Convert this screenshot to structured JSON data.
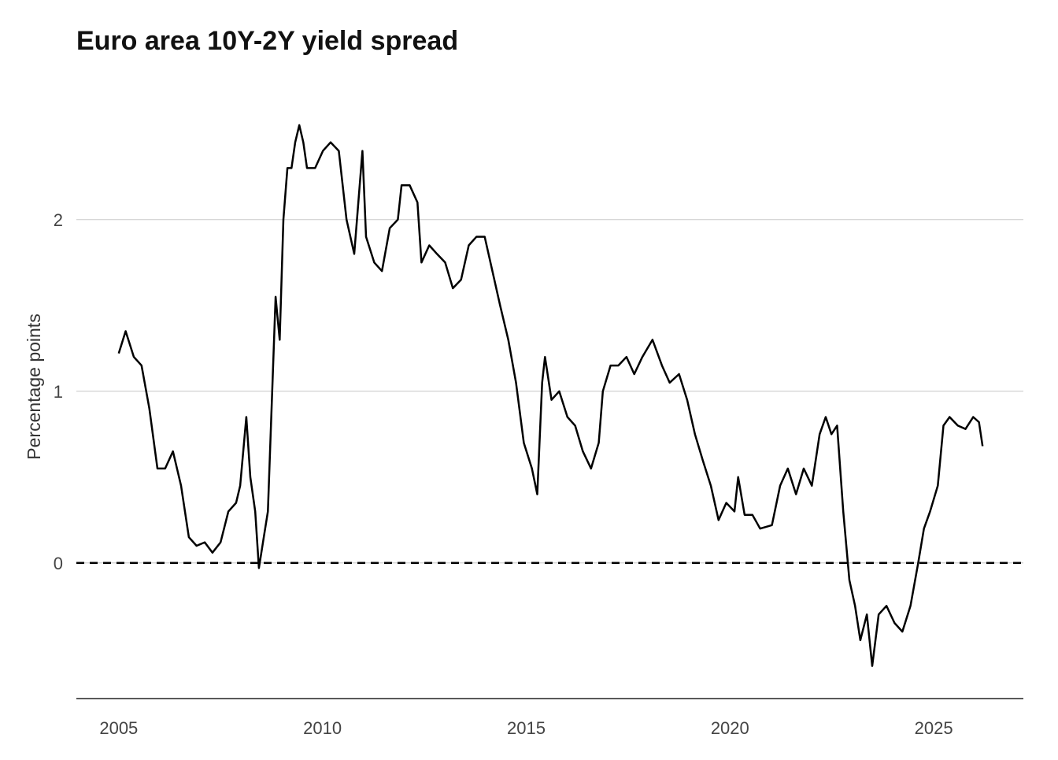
{
  "chart_data": {
    "type": "line",
    "title": "Euro area 10Y-2Y yield spread",
    "xlabel": "",
    "ylabel": "Percentage points",
    "xlim": [
      2003.96,
      2027.2
    ],
    "ylim": [
      -0.79,
      2.82
    ],
    "x_ticks": [
      2005,
      2010,
      2015,
      2020,
      2025
    ],
    "x_tick_labels": [
      "2005",
      "2010",
      "2015",
      "2020",
      "2025"
    ],
    "y_ticks": [
      0,
      1,
      2
    ],
    "y_tick_labels": [
      "0",
      "1",
      "2"
    ],
    "grid": "horizontal major",
    "reference_line": {
      "y": 0,
      "style": "dashed"
    },
    "colors": {
      "line": "#000000",
      "grid": "#d0d0d0"
    },
    "series": [
      {
        "name": "10Y-2Y spread",
        "x": [
          2005.0,
          2005.17,
          2005.37,
          2005.56,
          2005.75,
          2005.95,
          2006.14,
          2006.33,
          2006.53,
          2006.72,
          2006.91,
          2007.11,
          2007.3,
          2007.5,
          2007.69,
          2007.88,
          2007.98,
          2008.13,
          2008.23,
          2008.35,
          2008.44,
          2008.56,
          2008.66,
          2008.75,
          2008.85,
          2008.95,
          2009.04,
          2009.14,
          2009.24,
          2009.33,
          2009.43,
          2009.53,
          2009.62,
          2009.82,
          2010.01,
          2010.2,
          2010.4,
          2010.59,
          2010.78,
          2010.98,
          2011.07,
          2011.27,
          2011.46,
          2011.65,
          2011.85,
          2011.94,
          2012.14,
          2012.33,
          2012.43,
          2012.62,
          2012.81,
          2013.01,
          2013.2,
          2013.4,
          2013.59,
          2013.78,
          2013.98,
          2014.17,
          2014.36,
          2014.56,
          2014.75,
          2014.94,
          2015.14,
          2015.27,
          2015.39,
          2015.46,
          2015.62,
          2015.81,
          2016.01,
          2016.2,
          2016.39,
          2016.59,
          2016.78,
          2016.88,
          2017.07,
          2017.26,
          2017.46,
          2017.65,
          2017.85,
          2018.1,
          2018.33,
          2018.52,
          2018.75,
          2018.95,
          2019.14,
          2019.33,
          2019.53,
          2019.72,
          2019.91,
          2020.11,
          2020.2,
          2020.36,
          2020.55,
          2020.74,
          2021.03,
          2021.23,
          2021.42,
          2021.62,
          2021.81,
          2022.01,
          2022.2,
          2022.35,
          2022.49,
          2022.63,
          2022.78,
          2022.93,
          2023.07,
          2023.2,
          2023.36,
          2023.49,
          2023.65,
          2023.84,
          2024.04,
          2024.23,
          2024.43,
          2024.62,
          2024.76,
          2024.91,
          2025.1,
          2025.24,
          2025.39,
          2025.59,
          2025.78,
          2025.97,
          2026.11,
          2026.2
        ],
        "values": [
          1.22,
          1.35,
          1.2,
          1.15,
          0.9,
          0.55,
          0.55,
          0.65,
          0.45,
          0.15,
          0.1,
          0.12,
          0.06,
          0.12,
          0.3,
          0.35,
          0.45,
          0.85,
          0.5,
          0.3,
          -0.03,
          0.15,
          0.3,
          0.9,
          1.55,
          1.3,
          2.0,
          2.3,
          2.3,
          2.45,
          2.55,
          2.45,
          2.3,
          2.3,
          2.4,
          2.45,
          2.4,
          2.0,
          1.8,
          2.4,
          1.9,
          1.75,
          1.7,
          1.95,
          2.0,
          2.2,
          2.2,
          2.1,
          1.75,
          1.85,
          1.8,
          1.75,
          1.6,
          1.65,
          1.85,
          1.9,
          1.9,
          1.7,
          1.5,
          1.3,
          1.05,
          0.7,
          0.55,
          0.4,
          1.05,
          1.2,
          0.95,
          1.0,
          0.85,
          0.8,
          0.65,
          0.55,
          0.7,
          1.0,
          1.15,
          1.15,
          1.2,
          1.1,
          1.2,
          1.3,
          1.15,
          1.05,
          1.1,
          0.95,
          0.75,
          0.6,
          0.45,
          0.25,
          0.35,
          0.3,
          0.5,
          0.28,
          0.28,
          0.2,
          0.22,
          0.45,
          0.55,
          0.4,
          0.55,
          0.45,
          0.75,
          0.85,
          0.75,
          0.8,
          0.3,
          -0.1,
          -0.25,
          -0.45,
          -0.3,
          -0.6,
          -0.3,
          -0.25,
          -0.35,
          -0.4,
          -0.25,
          0.0,
          0.2,
          0.3,
          0.45,
          0.8,
          0.85,
          0.8,
          0.78,
          0.85,
          0.82,
          0.68
        ]
      }
    ]
  }
}
